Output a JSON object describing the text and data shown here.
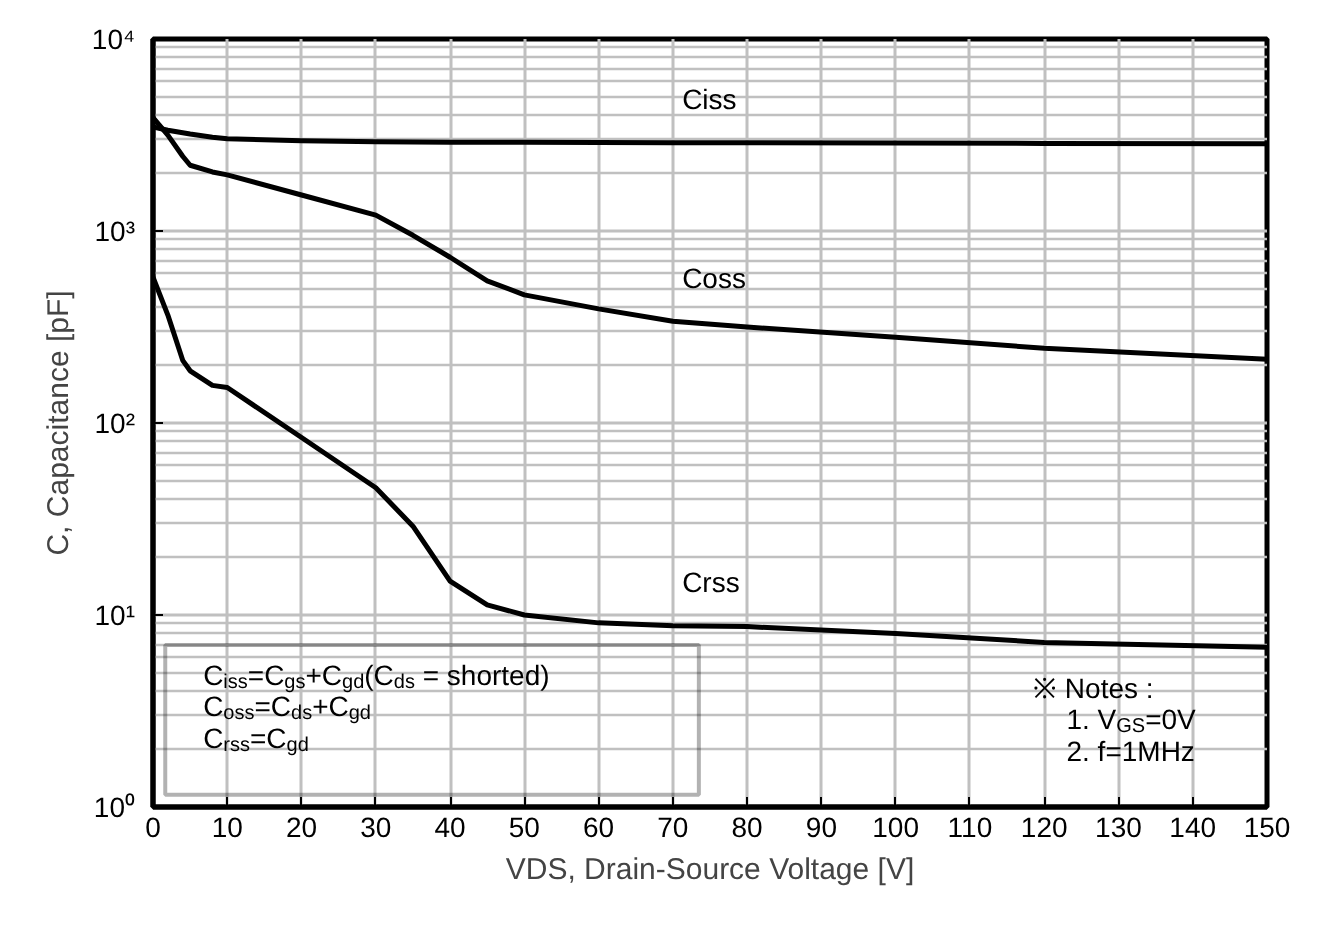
{
  "chart_data": {
    "type": "line",
    "xlabel": "VDS, Drain-Source Voltage [V]",
    "ylabel": "C, Capacitance [pF]",
    "log": "y",
    "grid": true,
    "line_style": "solid",
    "marker": "none",
    "xlim": [
      0,
      150
    ],
    "xticks": [
      0,
      10,
      20,
      30,
      40,
      50,
      60,
      70,
      80,
      90,
      100,
      110,
      120,
      130,
      140,
      150
    ],
    "ylim": [
      1,
      10000
    ],
    "yticks": [
      {
        "value": 1,
        "label": "10⁰"
      },
      {
        "value": 10,
        "label": "10¹"
      },
      {
        "value": 100,
        "label": "10²"
      },
      {
        "value": 1000,
        "label": "10³"
      },
      {
        "value": 10000,
        "label": "10⁴"
      }
    ],
    "x": [
      0,
      2,
      4,
      5,
      8,
      10,
      20,
      30,
      35,
      40,
      45,
      50,
      60,
      70,
      80,
      100,
      120,
      150
    ],
    "series": [
      {
        "name": "Ciss",
        "color": "#000000",
        "values": [
          3480,
          3350,
          3250,
          3200,
          3080,
          3020,
          2950,
          2920,
          2910,
          2900,
          2900,
          2900,
          2890,
          2880,
          2880,
          2870,
          2860,
          2850
        ]
      },
      {
        "name": "Coss",
        "color": "#000000",
        "values": [
          3900,
          3160,
          2450,
          2200,
          2030,
          1960,
          1540,
          1210,
          950,
          730,
          550,
          465,
          393,
          339,
          316,
          280,
          245,
          215
        ]
      },
      {
        "name": "Crss",
        "color": "#000000",
        "values": [
          575,
          365,
          212,
          187,
          157,
          153,
          84,
          46,
          29,
          15,
          11.3,
          10,
          9.1,
          8.8,
          8.7,
          8.0,
          7.2,
          6.8
        ]
      }
    ],
    "annotations": [
      "C$_{iss}$=C$_{gs}$+C$_{gd}$(C$_{ds}$ = shorted)\nC$_{oss}$=C$_{ds}$+C$_{gd}$\nC$_{rss}$=C$_{gd}$",
      "※ Notes :\n1. V$_{GS}$=0V\n2. f=1MHz"
    ]
  }
}
